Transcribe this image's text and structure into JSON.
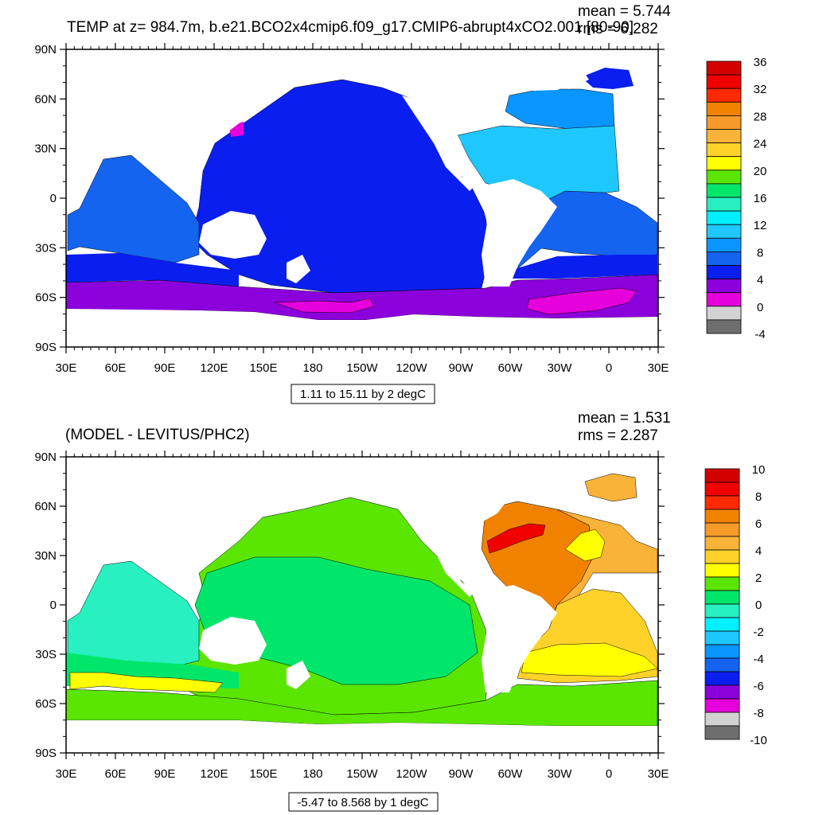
{
  "panels": [
    {
      "id": "top",
      "title": "TEMP at z= 984.7m, b.e21.BCO2x4cmip6.f09_g17.CMIP6-abrupt4xCO2.001 [80-90]",
      "mean_label": "mean = 5.744",
      "rms_label": "rms = 6.282",
      "info_label": "1.11 to 15.11 by 2 degC",
      "colorbar_labels": [
        "36",
        "32",
        "28",
        "24",
        "20",
        "16",
        "12",
        "8",
        "4",
        "0",
        "-4"
      ],
      "colorbar_colors": [
        "#d40000",
        "#f10000",
        "#ff2a00",
        "#f18200",
        "#f69a2a",
        "#f9b338",
        "#ffd22a",
        "#ffff00",
        "#5ae600",
        "#00e66a",
        "#28f0c0",
        "#00f0ff",
        "#1ec8ff",
        "#0a96ff",
        "#1464f0",
        "#0a1ef0",
        "#8c00dc",
        "#e600dc",
        "#d2d2d2",
        "#6e6e6e"
      ]
    },
    {
      "id": "bottom",
      "title": "(MODEL - LEVITUS/PHC2)",
      "mean_label": "mean = 1.531",
      "rms_label": "rms = 2.287",
      "info_label": "-5.47 to 8.568 by 1 degC",
      "colorbar_labels": [
        "10",
        "8",
        "6",
        "4",
        "2",
        "0",
        "-2",
        "-4",
        "-6",
        "-8",
        "-10"
      ],
      "colorbar_colors": [
        "#d40000",
        "#f10000",
        "#ff2a00",
        "#f18200",
        "#f69a2a",
        "#f9b338",
        "#ffd22a",
        "#ffff00",
        "#5ae600",
        "#00e66a",
        "#28f0c0",
        "#00f0ff",
        "#1ec8ff",
        "#0a96ff",
        "#1464f0",
        "#0a1ef0",
        "#8c00dc",
        "#e600dc",
        "#d2d2d2",
        "#6e6e6e"
      ]
    }
  ],
  "axes": {
    "lat_labels": [
      "90N",
      "60N",
      "30N",
      "0",
      "30S",
      "60S",
      "90S"
    ],
    "lon_labels": [
      "30E",
      "60E",
      "90E",
      "120E",
      "150E",
      "180",
      "150W",
      "120W",
      "90W",
      "60W",
      "30W",
      "0",
      "30E"
    ]
  }
}
